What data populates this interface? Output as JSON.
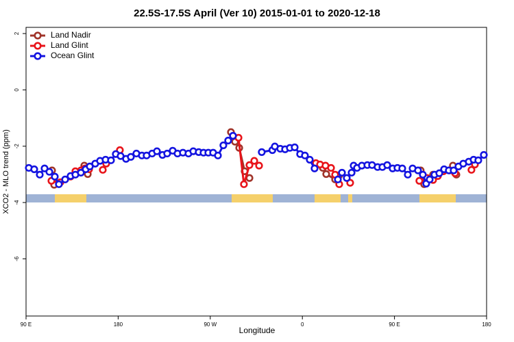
{
  "chart_data": {
    "type": "line",
    "title": "22.5S-17.5S April (Ver 10)   2015-01-01 to 2020-12-18",
    "x_label": "Longitude",
    "y_label": "XCO2 - MLO trend (ppm)",
    "xlim": [
      90,
      540
    ],
    "xticks": [
      {
        "value": 90,
        "label": "90 E"
      },
      180,
      {
        "value": 270,
        "label": "90 W"
      },
      {
        "value": 360,
        "label": "0"
      },
      {
        "value": 450,
        "label": "90 E"
      },
      {
        "value": 540,
        "label": "180"
      }
    ],
    "ylim": [
      -8.03,
      2.22
    ],
    "yticks": [
      2,
      0,
      -2,
      -4,
      -6
    ],
    "legend": "top-left",
    "series": [
      {
        "name": "Land Nadir",
        "color": "#a0342a",
        "x": [
          115.4,
          117.5,
          null,
          146.9,
          150.3,
          null,
          290.2,
          294.2,
          298.3,
          303.6,
          308.3,
          null,
          380.0,
          383.3,
          392.0,
          396.0,
          null,
          475.6,
          479.0,
          487.7,
          null,
          507.1,
          510.5
        ],
        "values": [
          -2.86,
          -3.37,
          null,
          -2.69,
          -2.99,
          null,
          -1.5,
          -1.84,
          -2.06,
          -2.89,
          -3.13,
          null,
          -2.77,
          -2.99,
          -3.18,
          -3.03,
          null,
          -2.86,
          -3.35,
          -3.01,
          null,
          -2.69,
          -3.01
        ]
      },
      {
        "name": "Land Glint",
        "color": "#e8141a",
        "x": [
          114.8,
          123.5,
          133.5,
          138.2,
          143.6,
          147.6,
          151.6,
          null,
          165.0,
          168.3,
          null,
          181.7,
          null,
          297.6,
          302.9,
          308.3,
          313.0,
          317.7,
          null,
          373.2,
          377.3,
          382.6,
          388.0,
          392.0,
          396.0,
          null,
          406.7,
          null,
          474.3,
          481.7,
          487.7,
          492.4,
          497.8,
          503.8,
          509.2,
          null,
          525.2,
          528.6
        ],
        "values": [
          -3.23,
          -3.28,
          -3.08,
          -2.89,
          -2.86,
          -2.79,
          -2.82,
          null,
          -2.84,
          -2.62,
          null,
          -2.14,
          null,
          -1.7,
          -3.35,
          -2.67,
          -2.52,
          -2.69,
          null,
          -2.6,
          -2.65,
          -2.69,
          -2.77,
          -3.01,
          -3.35,
          null,
          -3.3,
          null,
          -3.23,
          -3.13,
          -3.2,
          -3.06,
          -2.89,
          -2.86,
          -2.96,
          null,
          -2.84,
          -2.65
        ]
      },
      {
        "name": "Ocean Glint",
        "color": "#1414e0",
        "x": [
          92.7,
          98.0,
          103.4,
          108.1,
          112.8,
          118.1,
          122.1,
          128.2,
          133.5,
          138.2,
          143.6,
          148.3,
          152.3,
          157.6,
          162.3,
          167.7,
          173.0,
          177.7,
          182.4,
          187.7,
          192.4,
          197.8,
          203.2,
          207.8,
          213.2,
          217.9,
          223.3,
          227.9,
          233.3,
          238.0,
          243.3,
          248.7,
          253.4,
          258.7,
          263.4,
          268.1,
          272.8,
          277.5,
          282.8,
          287.5,
          292.2,
          null,
          320.3,
          330.7,
          333.1,
          338.4,
          343.1,
          347.8,
          352.5,
          357.8,
          362.5,
          367.2,
          371.9,
          null,
          394.7,
          398.7,
          403.4,
          408.1,
          410.1,
          413.4,
          418.1,
          423.5,
          428.1,
          433.5,
          438.2,
          442.9,
          448.2,
          452.9,
          457.6,
          463.0,
          467.7,
          473.0,
          477.7,
          481.0,
          484.4,
          489.1,
          493.8,
          498.5,
          503.1,
          507.8,
          512.5,
          517.2,
          522.6,
          527.3,
          531.9,
          537.3
        ],
        "values": [
          -2.77,
          -2.82,
          -3.01,
          -2.79,
          -2.91,
          -3.08,
          -3.35,
          -3.18,
          -3.06,
          -3.01,
          -2.94,
          -2.82,
          -2.72,
          -2.62,
          -2.52,
          -2.48,
          -2.5,
          -2.28,
          -2.35,
          -2.45,
          -2.38,
          -2.26,
          -2.33,
          -2.33,
          -2.26,
          -2.18,
          -2.31,
          -2.26,
          -2.16,
          -2.26,
          -2.23,
          -2.26,
          -2.18,
          -2.21,
          -2.23,
          -2.23,
          -2.23,
          -2.33,
          -1.97,
          -1.8,
          -1.63,
          null,
          -2.21,
          -2.14,
          -2.01,
          -2.09,
          -2.11,
          -2.06,
          -2.04,
          -2.28,
          -2.33,
          -2.48,
          -2.79,
          null,
          -3.18,
          -2.94,
          -3.13,
          -2.94,
          -2.69,
          -2.77,
          -2.69,
          -2.67,
          -2.67,
          -2.74,
          -2.74,
          -2.67,
          -2.79,
          -2.77,
          -2.79,
          -3.01,
          -2.79,
          -2.86,
          -3.01,
          -3.33,
          -3.18,
          -3.01,
          -2.96,
          -2.82,
          -2.86,
          -2.86,
          -2.72,
          -2.62,
          -2.55,
          -2.48,
          -2.5,
          -2.31
        ]
      }
    ]
  }
}
